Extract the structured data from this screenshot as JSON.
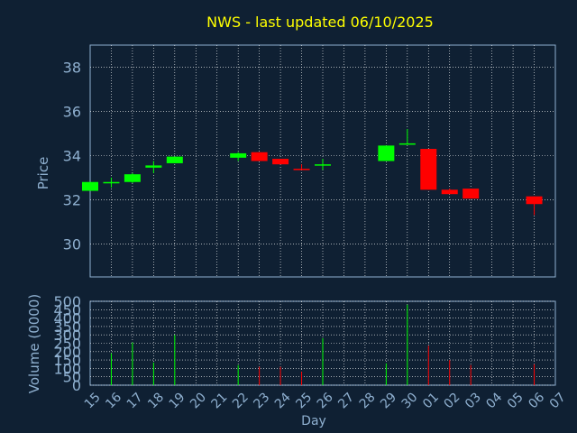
{
  "chart_data": [
    {
      "type": "candlestick",
      "title": "NWS - last updated 06/10/2025",
      "ylabel": "Price",
      "ylim": [
        28.5,
        39.0
      ],
      "yticks": [
        30,
        32,
        34,
        36,
        38
      ],
      "grid": true,
      "colors": {
        "up": "#00ff00",
        "down": "#ff0000",
        "title": "#ffff00",
        "text": "#8fb0d0",
        "grid": "#ffffff",
        "background": "#0f2033",
        "volume_bars": "#00ff00"
      },
      "candles": [
        {
          "x": "15",
          "open": 32.4,
          "close": 32.8,
          "high": 32.8,
          "low": 32.4
        },
        {
          "x": "16",
          "open": 32.75,
          "close": 32.8,
          "high": 33.0,
          "low": 32.55
        },
        {
          "x": "17",
          "open": 32.8,
          "close": 33.15,
          "high": 33.2,
          "low": 32.75
        },
        {
          "x": "18",
          "open": 33.45,
          "close": 33.55,
          "high": 33.75,
          "low": 33.2
        },
        {
          "x": "19",
          "open": 33.65,
          "close": 33.95,
          "high": 33.95,
          "low": 33.65
        },
        {
          "x": "22",
          "open": 33.9,
          "close": 34.1,
          "high": 34.15,
          "low": 33.75
        },
        {
          "x": "23",
          "open": 34.15,
          "close": 33.75,
          "high": 34.15,
          "low": 33.75
        },
        {
          "x": "24",
          "open": 33.85,
          "close": 33.6,
          "high": 33.85,
          "low": 33.6
        },
        {
          "x": "25",
          "open": 33.4,
          "close": 33.35,
          "high": 33.6,
          "low": 33.35
        },
        {
          "x": "26",
          "open": 33.55,
          "close": 33.6,
          "high": 33.85,
          "low": 33.35
        },
        {
          "x": "29",
          "open": 33.75,
          "close": 34.45,
          "high": 34.45,
          "low": 33.75
        },
        {
          "x": "30",
          "open": 34.5,
          "close": 34.55,
          "high": 35.2,
          "low": 34.5
        },
        {
          "x": "01",
          "open": 34.3,
          "close": 32.45,
          "high": 34.3,
          "low": 32.45
        },
        {
          "x": "02",
          "open": 32.45,
          "close": 32.25,
          "high": 32.5,
          "low": 32.25
        },
        {
          "x": "03",
          "open": 32.5,
          "close": 32.05,
          "high": 32.5,
          "low": 32.05
        },
        {
          "x": "06",
          "open": 32.15,
          "close": 31.8,
          "high": 32.15,
          "low": 31.3
        }
      ]
    },
    {
      "type": "bar",
      "ylabel": "Volume (0000)",
      "xlabel": "Day",
      "ylim": [
        0,
        500
      ],
      "yticks": [
        0,
        50,
        100,
        150,
        200,
        250,
        300,
        350,
        400,
        450,
        500
      ],
      "categories": [
        "15",
        "16",
        "17",
        "18",
        "19",
        "20",
        "21",
        "22",
        "23",
        "24",
        "25",
        "26",
        "27",
        "28",
        "29",
        "30",
        "01",
        "02",
        "03",
        "04",
        "05",
        "06",
        "07"
      ],
      "grid": true,
      "bars": [
        {
          "x": "16",
          "value": 190
        },
        {
          "x": "17",
          "value": 255
        },
        {
          "x": "18",
          "value": 135
        },
        {
          "x": "19",
          "value": 300
        },
        {
          "x": "22",
          "value": 120
        },
        {
          "x": "23",
          "value": 110
        },
        {
          "x": "24",
          "value": 110
        },
        {
          "x": "25",
          "value": 80
        },
        {
          "x": "26",
          "value": 280
        },
        {
          "x": "29",
          "value": 130
        },
        {
          "x": "30",
          "value": 480
        },
        {
          "x": "01",
          "value": 235
        },
        {
          "x": "02",
          "value": 150
        },
        {
          "x": "03",
          "value": 120
        },
        {
          "x": "06",
          "value": 125
        }
      ]
    }
  ]
}
